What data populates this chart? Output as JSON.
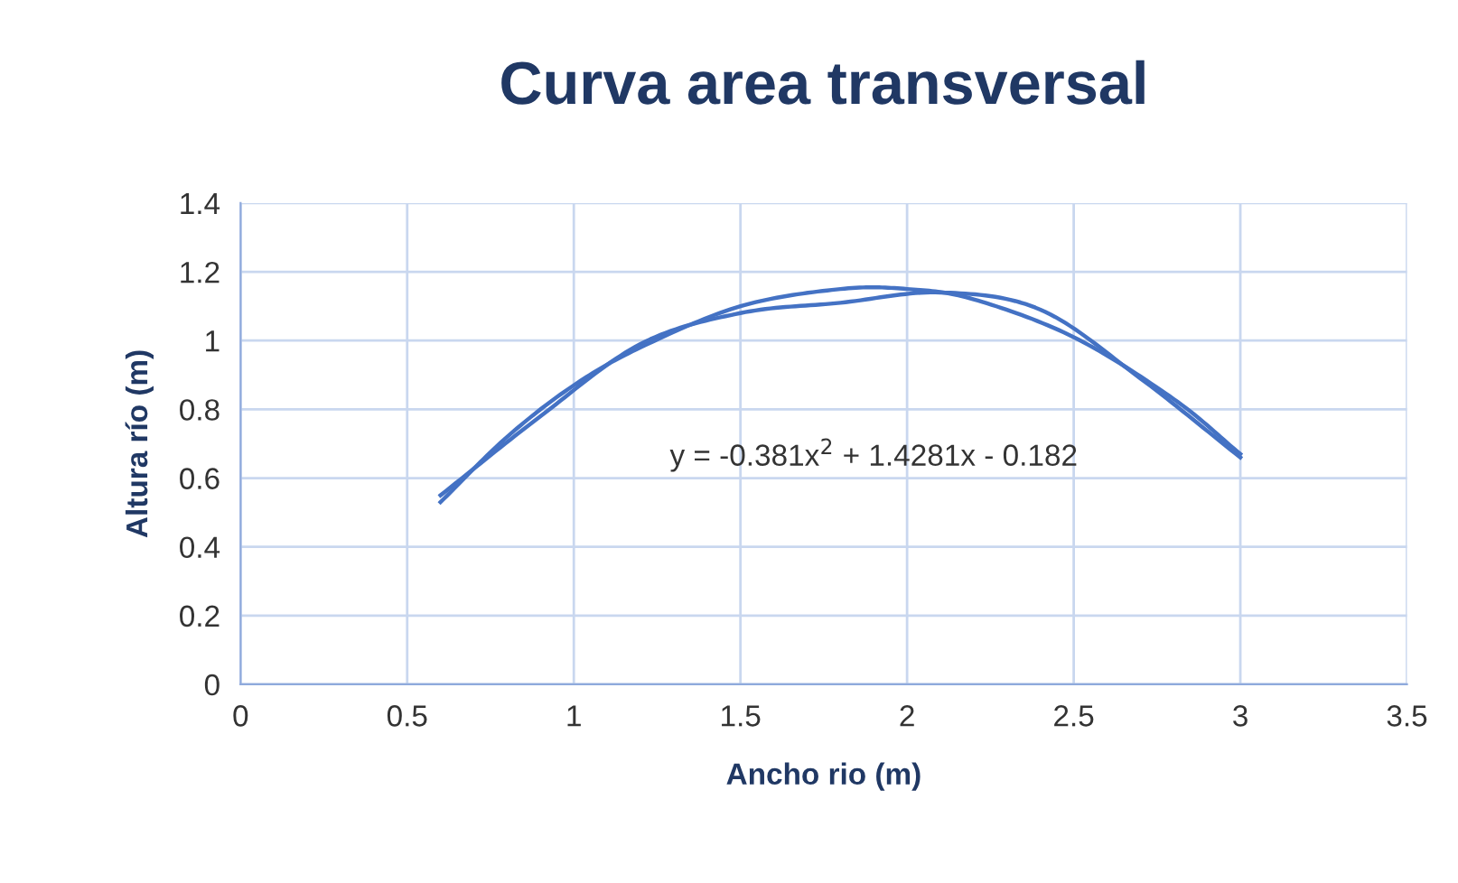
{
  "chart_data": {
    "type": "line",
    "title": "Curva area transversal",
    "xlabel": "Ancho rio (m)",
    "ylabel": "Altura río (m)",
    "x": [
      0.6,
      0.9,
      1.2,
      1.5,
      1.8,
      2.1,
      2.4,
      2.7,
      3.0
    ],
    "series": [
      {
        "color": "#4472c4",
        "values": [
          0.55,
          0.78,
          0.99,
          1.08,
          1.11,
          1.14,
          1.09,
          0.89,
          0.66
        ]
      },
      {
        "type": "line",
        "color": "#4472c4",
        "x": [
          0.6,
          0.8,
          1.0,
          1.2,
          1.5,
          1.8,
          2.0,
          2.2,
          2.5,
          2.8,
          3.0
        ],
        "values": [
          0.53,
          0.72,
          0.87,
          0.98,
          1.1,
          1.15,
          1.15,
          1.12,
          1.01,
          0.83,
          0.67
        ]
      }
    ],
    "annotations": [
      "y = -0.381x$^{2}$ + 1.4281x - 0.182"
    ],
    "xlim": [
      0,
      3.5
    ],
    "xticks": [
      0,
      0.5,
      1,
      1.5,
      2,
      2.5,
      3,
      3.5
    ],
    "ylim": [
      0,
      1.4
    ],
    "yticks": [
      0,
      0.2,
      0.4,
      0.6,
      0.8,
      1,
      1.2,
      1.4
    ],
    "grid": true,
    "marker": "none",
    "line_style": "solid"
  }
}
